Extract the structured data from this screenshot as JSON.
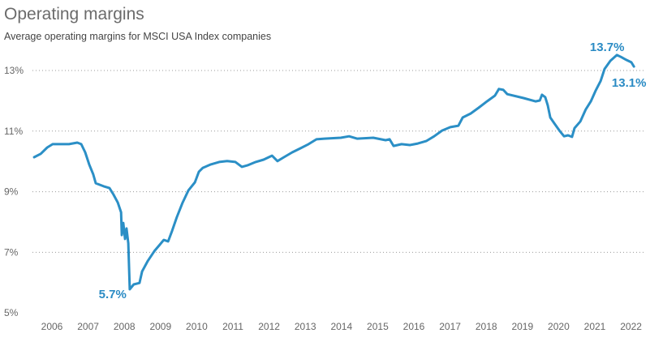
{
  "chart_data": {
    "type": "line",
    "title": "Operating margins",
    "subtitle": "Average operating margins for MSCI USA Index companies",
    "xlabel": "",
    "ylabel": "",
    "xlim": [
      2006.0,
      2022.6
    ],
    "ylim": [
      5,
      14
    ],
    "grid": "horizontal-dotted",
    "line_color": "#2b8fc6",
    "x_ticks": [
      "2006",
      "2007",
      "2008",
      "2009",
      "2010",
      "2011",
      "2012",
      "2013",
      "2014",
      "2015",
      "2016",
      "2017",
      "2018",
      "2019",
      "2020",
      "2021",
      "2022"
    ],
    "y_ticks": [
      {
        "value": 13,
        "label": "13%"
      },
      {
        "value": 11,
        "label": "11%"
      },
      {
        "value": 9,
        "label": "9%"
      },
      {
        "value": 7,
        "label": "7%"
      },
      {
        "value": 5,
        "label": "5%"
      }
    ],
    "series": [
      {
        "name": "Average operating margin (%)",
        "x": [
          2006.01,
          2006.19,
          2006.37,
          2006.52,
          2006.97,
          2007.2,
          2007.31,
          2007.42,
          2007.53,
          2007.64,
          2007.71,
          2007.93,
          2008.09,
          2008.2,
          2008.32,
          2008.41,
          2008.43,
          2008.47,
          2008.52,
          2008.56,
          2008.61,
          2008.65,
          2008.76,
          2008.92,
          2008.99,
          2009.15,
          2009.33,
          2009.48,
          2009.59,
          2009.71,
          2009.82,
          2009.95,
          2010.11,
          2010.27,
          2010.45,
          2010.56,
          2010.67,
          2010.89,
          2011.12,
          2011.34,
          2011.57,
          2011.75,
          2011.9,
          2012.13,
          2012.35,
          2012.58,
          2012.73,
          2012.91,
          2013.14,
          2013.36,
          2013.59,
          2013.81,
          2014.03,
          2014.48,
          2014.71,
          2014.93,
          2015.38,
          2015.72,
          2015.83,
          2015.94,
          2016.16,
          2016.39,
          2016.61,
          2016.84,
          2017.06,
          2017.28,
          2017.51,
          2017.73,
          2017.85,
          2018.07,
          2018.29,
          2018.52,
          2018.74,
          2018.85,
          2018.97,
          2019.08,
          2019.53,
          2019.86,
          2019.98,
          2020.04,
          2020.13,
          2020.2,
          2020.27,
          2020.38,
          2020.54,
          2020.65,
          2020.76,
          2020.87,
          2020.94,
          2021.1,
          2021.25,
          2021.39,
          2021.52,
          2021.66,
          2021.77,
          2021.93,
          2022.11,
          2022.22,
          2022.37,
          2022.51,
          2022.58
        ],
        "y": [
          10.14,
          10.25,
          10.46,
          10.57,
          10.57,
          10.62,
          10.57,
          10.3,
          9.9,
          9.58,
          9.28,
          9.18,
          9.12,
          8.91,
          8.64,
          8.32,
          7.57,
          7.97,
          7.44,
          7.79,
          7.3,
          5.78,
          5.94,
          5.99,
          6.37,
          6.72,
          7.04,
          7.25,
          7.41,
          7.36,
          7.71,
          8.16,
          8.64,
          9.04,
          9.31,
          9.66,
          9.79,
          9.9,
          9.98,
          10.01,
          9.98,
          9.82,
          9.87,
          9.98,
          10.06,
          10.19,
          10.01,
          10.14,
          10.3,
          10.43,
          10.57,
          10.73,
          10.75,
          10.78,
          10.83,
          10.75,
          10.78,
          10.7,
          10.73,
          10.51,
          10.57,
          10.54,
          10.59,
          10.67,
          10.83,
          11.02,
          11.13,
          11.18,
          11.45,
          11.58,
          11.77,
          11.98,
          12.17,
          12.39,
          12.36,
          12.22,
          12.09,
          11.98,
          12.01,
          12.2,
          12.12,
          11.85,
          11.45,
          11.26,
          10.99,
          10.83,
          10.86,
          10.81,
          11.1,
          11.32,
          11.72,
          11.98,
          12.33,
          12.65,
          13.05,
          13.32,
          13.51,
          13.45,
          13.35,
          13.27,
          13.13
        ]
      }
    ],
    "annotations": [
      {
        "label": "5.7%",
        "x": 2008.65,
        "y": 5.7,
        "anchor": "left"
      },
      {
        "label": "13.7%",
        "x": 2022.11,
        "y": 13.7,
        "anchor": "above"
      },
      {
        "label": "13.1%",
        "x": 2022.58,
        "y": 13.1,
        "anchor": "below"
      }
    ]
  }
}
